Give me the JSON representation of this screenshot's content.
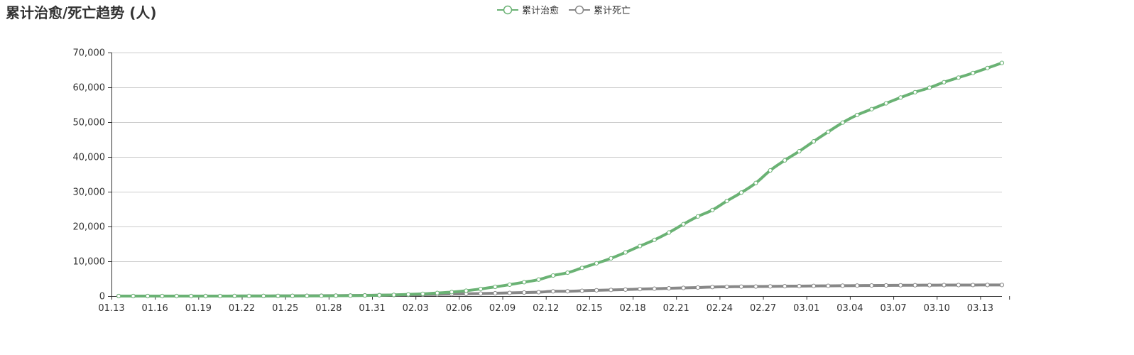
{
  "title": "累计治愈/死亡趋势 (人)",
  "colors": {
    "recovered": "#6ab274",
    "deaths": "#888888",
    "grid": "#cccccc",
    "axis": "#333333"
  },
  "chart_data": {
    "type": "line",
    "title": "累计治愈/死亡趋势 (人)",
    "ylim": [
      0,
      70000
    ],
    "y_ticks": [
      0,
      10000,
      20000,
      30000,
      40000,
      50000,
      60000,
      70000
    ],
    "y_tick_labels": [
      "0",
      "10,000",
      "20,000",
      "30,000",
      "40,000",
      "50,000",
      "60,000",
      "70,000"
    ],
    "grid": true,
    "legend_position": "top-center",
    "x": [
      "01.13",
      "01.14",
      "01.15",
      "01.16",
      "01.17",
      "01.18",
      "01.19",
      "01.20",
      "01.21",
      "01.22",
      "01.23",
      "01.24",
      "01.25",
      "01.26",
      "01.27",
      "01.28",
      "01.29",
      "01.30",
      "01.31",
      "02.01",
      "02.02",
      "02.03",
      "02.04",
      "02.05",
      "02.06",
      "02.07",
      "02.08",
      "02.09",
      "02.10",
      "02.11",
      "02.12",
      "02.13",
      "02.14",
      "02.15",
      "02.16",
      "02.17",
      "02.18",
      "02.19",
      "02.20",
      "02.21",
      "02.22",
      "02.23",
      "02.24",
      "02.25",
      "02.26",
      "02.27",
      "02.28",
      "02.29",
      "03.01",
      "03.02",
      "03.03",
      "03.04",
      "03.05",
      "03.06",
      "03.07",
      "03.08",
      "03.09",
      "03.10",
      "03.11",
      "03.12",
      "03.13",
      "03.14"
    ],
    "x_tick_labels": [
      "01.13",
      "01.16",
      "01.19",
      "01.22",
      "01.25",
      "01.28",
      "01.31",
      "02.03",
      "02.06",
      "02.09",
      "02.12",
      "02.15",
      "02.18",
      "02.21",
      "02.24",
      "02.27",
      "03.01",
      "03.04",
      "03.07",
      "03.10",
      "03.13"
    ],
    "series": [
      {
        "name": "累计治愈",
        "color": "#6ab274",
        "values": [
          0,
          0,
          0,
          0,
          0,
          0,
          0,
          0,
          25,
          28,
          34,
          38,
          49,
          51,
          60,
          103,
          124,
          171,
          243,
          328,
          475,
          632,
          892,
          1153,
          1540,
          2050,
          2649,
          3281,
          3996,
          4740,
          5911,
          6723,
          8096,
          9419,
          10844,
          12552,
          14376,
          16155,
          18264,
          20659,
          22888,
          24734,
          27323,
          29745,
          32495,
          36117,
          39002,
          41625,
          44462,
          47204,
          49856,
          52045,
          53726,
          55404,
          57065,
          58600,
          59897,
          61475,
          62793,
          64111,
          65541,
          67017
        ]
      },
      {
        "name": "累计死亡",
        "color": "#888888",
        "values": [
          1,
          1,
          1,
          1,
          2,
          2,
          2,
          3,
          9,
          17,
          25,
          41,
          56,
          80,
          106,
          132,
          170,
          213,
          259,
          304,
          361,
          425,
          490,
          563,
          636,
          722,
          811,
          908,
          1016,
          1113,
          1367,
          1380,
          1523,
          1665,
          1770,
          1868,
          2004,
          2118,
          2236,
          2345,
          2442,
          2592,
          2663,
          2715,
          2744,
          2788,
          2835,
          2870,
          2912,
          2943,
          2981,
          3012,
          3042,
          3070,
          3097,
          3119,
          3136,
          3158,
          3169,
          3176,
          3189,
          3194
        ]
      }
    ]
  }
}
